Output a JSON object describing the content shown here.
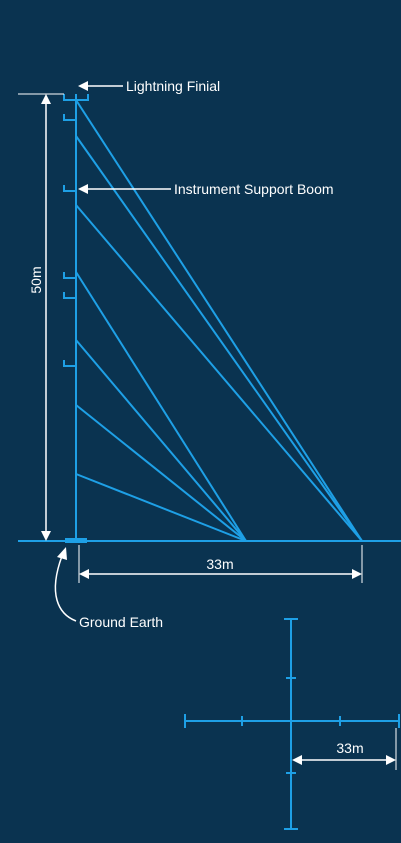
{
  "labels": {
    "lightning_finial": "Lightning Finial",
    "instrument_support_boom": "Instrument Support Boom",
    "ground_earth": "Ground Earth",
    "mast_height": "50m",
    "guy_anchor_distance": "33m",
    "plan_anchor_distance": "33m"
  },
  "colors": {
    "background": "#0a3350",
    "structure": "#1ea0e6",
    "annotation": "#ffffff"
  }
}
